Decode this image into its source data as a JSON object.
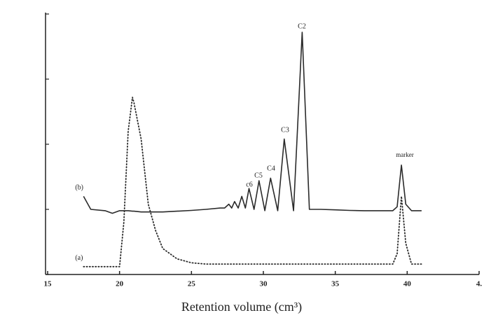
{
  "chart_data": {
    "type": "line",
    "x_label": "Retention volume (cm³)",
    "x": [
      17.5,
      18,
      19,
      19.5,
      20,
      20.3,
      20.6,
      20.9,
      21,
      21.5,
      22,
      22.5,
      23,
      24,
      25,
      26,
      27,
      27.3,
      27.6,
      27.8,
      28.0,
      28.25,
      28.5,
      28.75,
      29.0,
      29.35,
      29.7,
      30.1,
      30.5,
      31.0,
      31.45,
      32.1,
      32.7,
      33.2,
      34,
      35,
      36,
      37,
      38,
      39,
      39.3,
      39.6,
      39.9,
      40.3,
      41
    ],
    "series": [
      {
        "name": "(b)",
        "color": "#2a2a2a",
        "style": "solid",
        "values": [
          30,
          25,
          24.5,
          23.5,
          24.5,
          24.5,
          24.5,
          24.3,
          24.3,
          24,
          24,
          24,
          24,
          24.3,
          24.6,
          25,
          25.5,
          25.5,
          27,
          25.5,
          28,
          25.5,
          30,
          25.5,
          33,
          25,
          36,
          24.5,
          37,
          24.5,
          52,
          24.5,
          93,
          25,
          25,
          24.8,
          24.6,
          24.5,
          24.5,
          24.5,
          26,
          42,
          27,
          24.5,
          24.5
        ]
      },
      {
        "name": "(a)",
        "color": "#2a2a2a",
        "style": "dotted",
        "values": [
          3,
          3,
          3,
          3,
          3,
          20,
          55,
          68,
          66,
          52,
          27,
          17,
          10,
          6,
          4.5,
          4,
          4,
          4,
          4,
          4,
          4,
          4,
          4,
          4,
          4,
          4,
          4,
          4,
          4,
          4,
          4,
          4,
          4,
          4,
          4,
          4,
          4,
          4,
          4,
          4,
          8,
          30,
          12,
          4,
          4
        ]
      }
    ],
    "annotations": [
      "C2",
      "C3",
      "C4",
      "C5",
      "c6",
      "marker"
    ],
    "xlim": [
      15,
      45
    ],
    "xticks": [
      15,
      20,
      25,
      30,
      35,
      40,
      {
        "value": 45,
        "label": "4."
      }
    ],
    "ylim": [
      0,
      100
    ],
    "yticks": [
      0,
      25,
      50,
      75,
      100
    ]
  }
}
